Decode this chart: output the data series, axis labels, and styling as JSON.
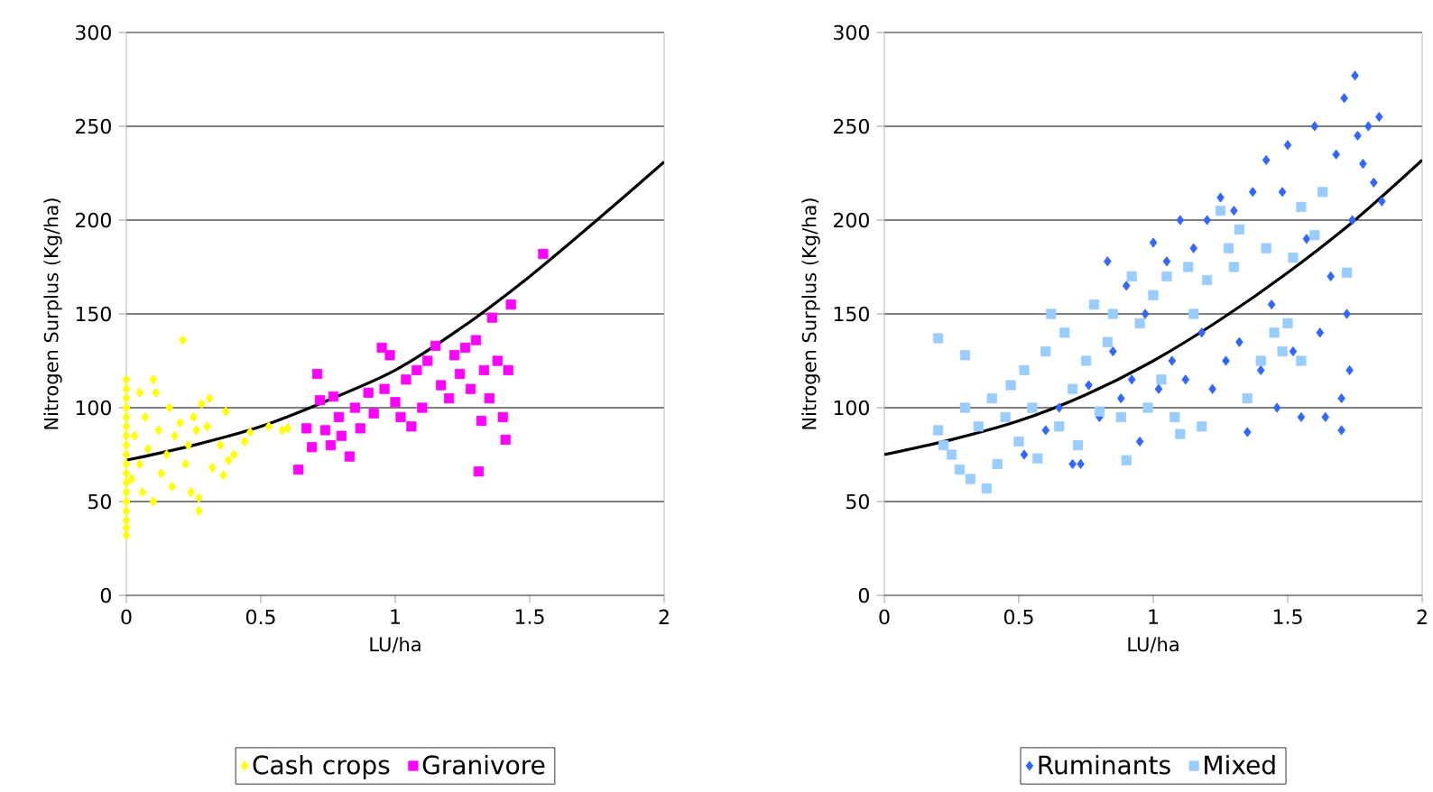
{
  "chart_data": [
    {
      "type": "scatter",
      "xlabel": "LU/ha",
      "ylabel": "Nitrogen Surplus (Kg/ha)",
      "xlim": [
        0,
        2
      ],
      "ylim": [
        0,
        300
      ],
      "xticks": [
        0,
        0.5,
        1,
        1.5,
        2
      ],
      "yticks": [
        0,
        50,
        100,
        150,
        200,
        250,
        300
      ],
      "grid": "y",
      "legend": "bottom",
      "series": [
        {
          "name": "Cash crops",
          "color": "#ffff00",
          "marker": "diamond",
          "x": [
            0,
            0,
            0,
            0,
            0,
            0,
            0,
            0,
            0,
            0,
            0,
            0,
            0,
            0,
            0,
            0,
            0,
            0,
            0.02,
            0.03,
            0.05,
            0.05,
            0.06,
            0.07,
            0.08,
            0.1,
            0.1,
            0.11,
            0.12,
            0.13,
            0.15,
            0.16,
            0.17,
            0.18,
            0.2,
            0.21,
            0.22,
            0.23,
            0.24,
            0.25,
            0.26,
            0.27,
            0.27,
            0.28,
            0.3,
            0.31,
            0.32,
            0.35,
            0.36,
            0.37,
            0.38,
            0.4,
            0.44,
            0.46,
            0.53,
            0.58,
            0.6
          ],
          "values": [
            32,
            36,
            40,
            45,
            50,
            55,
            60,
            65,
            70,
            75,
            80,
            85,
            90,
            95,
            100,
            105,
            110,
            115,
            62,
            85,
            70,
            108,
            55,
            95,
            78,
            115,
            50,
            108,
            88,
            65,
            75,
            100,
            58,
            85,
            92,
            136,
            70,
            80,
            55,
            95,
            88,
            45,
            52,
            102,
            90,
            105,
            68,
            80,
            64,
            98,
            72,
            75,
            82,
            87,
            90,
            88,
            89
          ]
        },
        {
          "name": "Granivore",
          "color": "#ff00ff",
          "marker": "square",
          "x": [
            0.64,
            0.67,
            0.69,
            0.71,
            0.72,
            0.74,
            0.76,
            0.77,
            0.79,
            0.8,
            0.83,
            0.85,
            0.87,
            0.9,
            0.92,
            0.95,
            0.96,
            0.98,
            1.0,
            1.02,
            1.04,
            1.06,
            1.08,
            1.1,
            1.12,
            1.15,
            1.17,
            1.2,
            1.22,
            1.24,
            1.26,
            1.28,
            1.3,
            1.31,
            1.32,
            1.33,
            1.35,
            1.36,
            1.38,
            1.4,
            1.41,
            1.42,
            1.43,
            1.55
          ],
          "values": [
            67,
            89,
            79,
            118,
            104,
            88,
            80,
            106,
            95,
            85,
            74,
            100,
            89,
            108,
            97,
            132,
            110,
            128,
            103,
            95,
            115,
            90,
            120,
            100,
            125,
            133,
            112,
            105,
            128,
            118,
            132,
            110,
            136,
            66,
            93,
            120,
            105,
            148,
            125,
            95,
            83,
            120,
            155,
            182
          ]
        },
        {
          "type": "line",
          "color": "#000000",
          "marker": "none",
          "x": [
            0,
            0.25,
            0.5,
            0.75,
            1,
            1.25,
            1.5,
            1.75,
            2
          ],
          "values": [
            72,
            80,
            90,
            104,
            120,
            143,
            170,
            200,
            231
          ]
        }
      ]
    },
    {
      "type": "scatter",
      "xlabel": "LU/ha",
      "ylabel": "Nitrogen Surplus (Kg/ha)",
      "xlim": [
        0,
        2
      ],
      "ylim": [
        0,
        300
      ],
      "xticks": [
        0,
        0.5,
        1,
        1.5,
        2
      ],
      "yticks": [
        0,
        50,
        100,
        150,
        200,
        250,
        300
      ],
      "grid": "y",
      "legend": "bottom",
      "series": [
        {
          "name": "Ruminants",
          "color": "#3366ff",
          "marker": "diamond",
          "x": [
            0.52,
            0.6,
            0.65,
            0.7,
            0.73,
            0.76,
            0.8,
            0.83,
            0.85,
            0.88,
            0.9,
            0.92,
            0.95,
            0.97,
            1.0,
            1.02,
            1.05,
            1.07,
            1.1,
            1.12,
            1.15,
            1.18,
            1.2,
            1.22,
            1.25,
            1.27,
            1.3,
            1.32,
            1.35,
            1.37,
            1.4,
            1.42,
            1.44,
            1.46,
            1.48,
            1.5,
            1.52,
            1.55,
            1.57,
            1.6,
            1.62,
            1.64,
            1.66,
            1.68,
            1.7,
            1.71,
            1.72,
            1.73,
            1.75,
            1.76,
            1.78,
            1.8,
            1.82,
            1.84,
            1.85,
            1.74,
            1.7
          ],
          "values": [
            75,
            88,
            100,
            70,
            70,
            112,
            95,
            178,
            130,
            105,
            165,
            115,
            82,
            150,
            188,
            110,
            178,
            125,
            200,
            115,
            185,
            140,
            200,
            110,
            212,
            125,
            205,
            135,
            87,
            215,
            120,
            232,
            155,
            100,
            215,
            240,
            130,
            95,
            190,
            250,
            140,
            95,
            170,
            235,
            88,
            265,
            150,
            120,
            277,
            245,
            230,
            250,
            220,
            255,
            210,
            200,
            105
          ]
        },
        {
          "name": "Mixed",
          "color": "#99ccff",
          "marker": "square",
          "x": [
            0.2,
            0.22,
            0.2,
            0.25,
            0.28,
            0.3,
            0.3,
            0.32,
            0.35,
            0.38,
            0.4,
            0.42,
            0.45,
            0.47,
            0.5,
            0.52,
            0.55,
            0.57,
            0.6,
            0.62,
            0.65,
            0.67,
            0.7,
            0.72,
            0.75,
            0.78,
            0.8,
            0.83,
            0.85,
            0.88,
            0.9,
            0.92,
            0.95,
            0.98,
            1.0,
            1.03,
            1.05,
            1.08,
            1.1,
            1.13,
            1.15,
            1.18,
            1.2,
            1.25,
            1.28,
            1.3,
            1.32,
            1.35,
            1.4,
            1.42,
            1.45,
            1.48,
            1.5,
            1.52,
            1.55,
            1.6,
            1.63,
            1.72,
            1.55
          ],
          "values": [
            88,
            80,
            137,
            75,
            67,
            128,
            100,
            62,
            90,
            57,
            105,
            70,
            95,
            112,
            82,
            120,
            100,
            73,
            130,
            150,
            90,
            140,
            110,
            80,
            125,
            155,
            98,
            135,
            150,
            95,
            72,
            170,
            145,
            100,
            160,
            115,
            170,
            95,
            86,
            175,
            150,
            90,
            168,
            205,
            185,
            175,
            195,
            105,
            125,
            185,
            140,
            130,
            145,
            180,
            207,
            192,
            215,
            172,
            125
          ]
        },
        {
          "type": "line",
          "color": "#000000",
          "marker": "none",
          "x": [
            0,
            0.25,
            0.5,
            0.75,
            1,
            1.25,
            1.5,
            1.75,
            2
          ],
          "values": [
            75,
            83,
            93,
            107,
            125,
            147,
            172,
            200,
            232
          ]
        }
      ]
    }
  ]
}
